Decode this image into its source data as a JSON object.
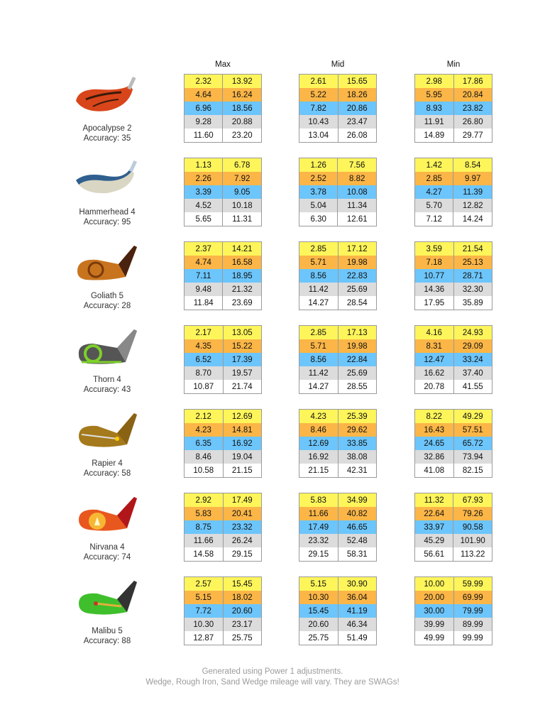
{
  "headers": {
    "max": "Max",
    "mid": "Mid",
    "min": "Min"
  },
  "clubs": [
    {
      "name": "Apocalypse 2",
      "accuracy": "Accuracy: 35",
      "icon": "driver-head-icon",
      "max": [
        [
          "2.32",
          "13.92"
        ],
        [
          "4.64",
          "16.24"
        ],
        [
          "6.96",
          "18.56"
        ],
        [
          "9.28",
          "20.88"
        ],
        [
          "11.60",
          "23.20"
        ]
      ],
      "mid": [
        [
          "2.61",
          "15.65"
        ],
        [
          "5.22",
          "18.26"
        ],
        [
          "7.82",
          "20.86"
        ],
        [
          "10.43",
          "23.47"
        ],
        [
          "13.04",
          "26.08"
        ]
      ],
      "min": [
        [
          "2.98",
          "17.86"
        ],
        [
          "5.95",
          "20.84"
        ],
        [
          "8.93",
          "23.82"
        ],
        [
          "11.91",
          "26.80"
        ],
        [
          "14.89",
          "29.77"
        ]
      ]
    },
    {
      "name": "Hammerhead 4",
      "accuracy": "Accuracy: 95",
      "icon": "wood-head-icon",
      "max": [
        [
          "1.13",
          "6.78"
        ],
        [
          "2.26",
          "7.92"
        ],
        [
          "3.39",
          "9.05"
        ],
        [
          "4.52",
          "10.18"
        ],
        [
          "5.65",
          "11.31"
        ]
      ],
      "mid": [
        [
          "1.26",
          "7.56"
        ],
        [
          "2.52",
          "8.82"
        ],
        [
          "3.78",
          "10.08"
        ],
        [
          "5.04",
          "11.34"
        ],
        [
          "6.30",
          "12.61"
        ]
      ],
      "min": [
        [
          "1.42",
          "8.54"
        ],
        [
          "2.85",
          "9.97"
        ],
        [
          "4.27",
          "11.39"
        ],
        [
          "5.70",
          "12.82"
        ],
        [
          "7.12",
          "14.24"
        ]
      ]
    },
    {
      "name": "Goliath 5",
      "accuracy": "Accuracy: 28",
      "icon": "hybrid-head-icon",
      "max": [
        [
          "2.37",
          "14.21"
        ],
        [
          "4.74",
          "16.58"
        ],
        [
          "7.11",
          "18.95"
        ],
        [
          "9.48",
          "21.32"
        ],
        [
          "11.84",
          "23.69"
        ]
      ],
      "mid": [
        [
          "2.85",
          "17.12"
        ],
        [
          "5.71",
          "19.98"
        ],
        [
          "8.56",
          "22.83"
        ],
        [
          "11.42",
          "25.69"
        ],
        [
          "14.27",
          "28.54"
        ]
      ],
      "min": [
        [
          "3.59",
          "21.54"
        ],
        [
          "7.18",
          "25.13"
        ],
        [
          "10.77",
          "28.71"
        ],
        [
          "14.36",
          "32.30"
        ],
        [
          "17.95",
          "35.89"
        ]
      ]
    },
    {
      "name": "Thorn 4",
      "accuracy": "Accuracy: 43",
      "icon": "rough-iron-head-icon",
      "max": [
        [
          "2.17",
          "13.05"
        ],
        [
          "4.35",
          "15.22"
        ],
        [
          "6.52",
          "17.39"
        ],
        [
          "8.70",
          "19.57"
        ],
        [
          "10.87",
          "21.74"
        ]
      ],
      "mid": [
        [
          "2.85",
          "17.13"
        ],
        [
          "5.71",
          "19.98"
        ],
        [
          "8.56",
          "22.84"
        ],
        [
          "11.42",
          "25.69"
        ],
        [
          "14.27",
          "28.55"
        ]
      ],
      "min": [
        [
          "4.16",
          "24.93"
        ],
        [
          "8.31",
          "29.09"
        ],
        [
          "12.47",
          "33.24"
        ],
        [
          "16.62",
          "37.40"
        ],
        [
          "20.78",
          "41.55"
        ]
      ]
    },
    {
      "name": "Rapier 4",
      "accuracy": "Accuracy: 58",
      "icon": "sand-wedge-head-icon",
      "max": [
        [
          "2.12",
          "12.69"
        ],
        [
          "4.23",
          "14.81"
        ],
        [
          "6.35",
          "16.92"
        ],
        [
          "8.46",
          "19.04"
        ],
        [
          "10.58",
          "21.15"
        ]
      ],
      "mid": [
        [
          "4.23",
          "25.39"
        ],
        [
          "8.46",
          "29.62"
        ],
        [
          "12.69",
          "33.85"
        ],
        [
          "16.92",
          "38.08"
        ],
        [
          "21.15",
          "42.31"
        ]
      ],
      "min": [
        [
          "8.22",
          "49.29"
        ],
        [
          "16.43",
          "57.51"
        ],
        [
          "24.65",
          "65.72"
        ],
        [
          "32.86",
          "73.94"
        ],
        [
          "41.08",
          "82.15"
        ]
      ]
    },
    {
      "name": "Nirvana 4",
      "accuracy": "Accuracy: 74",
      "icon": "iron-head-icon",
      "max": [
        [
          "2.92",
          "17.49"
        ],
        [
          "5.83",
          "20.41"
        ],
        [
          "8.75",
          "23.32"
        ],
        [
          "11.66",
          "26.24"
        ],
        [
          "14.58",
          "29.15"
        ]
      ],
      "mid": [
        [
          "5.83",
          "34.99"
        ],
        [
          "11.66",
          "40.82"
        ],
        [
          "17.49",
          "46.65"
        ],
        [
          "23.32",
          "52.48"
        ],
        [
          "29.15",
          "58.31"
        ]
      ],
      "min": [
        [
          "11.32",
          "67.93"
        ],
        [
          "22.64",
          "79.26"
        ],
        [
          "33.97",
          "90.58"
        ],
        [
          "45.29",
          "101.90"
        ],
        [
          "56.61",
          "113.22"
        ]
      ]
    },
    {
      "name": "Malibu 5",
      "accuracy": "Accuracy: 88",
      "icon": "wedge-head-icon",
      "max": [
        [
          "2.57",
          "15.45"
        ],
        [
          "5.15",
          "18.02"
        ],
        [
          "7.72",
          "20.60"
        ],
        [
          "10.30",
          "23.17"
        ],
        [
          "12.87",
          "25.75"
        ]
      ],
      "mid": [
        [
          "5.15",
          "30.90"
        ],
        [
          "10.30",
          "36.04"
        ],
        [
          "15.45",
          "41.19"
        ],
        [
          "20.60",
          "46.34"
        ],
        [
          "25.75",
          "51.49"
        ]
      ],
      "min": [
        [
          "10.00",
          "59.99"
        ],
        [
          "20.00",
          "69.99"
        ],
        [
          "30.00",
          "79.99"
        ],
        [
          "39.99",
          "89.99"
        ],
        [
          "49.99",
          "99.99"
        ]
      ]
    }
  ],
  "row_colors": [
    "#fdf55a",
    "#fbb647",
    "#6cc5fb",
    "#dcdcdc",
    "#ffffff"
  ],
  "footer": {
    "line1": "Generated using Power 1 adjustments.",
    "line2": "Wedge, Rough Iron, Sand Wedge mileage will vary. They are SWAGs!"
  }
}
